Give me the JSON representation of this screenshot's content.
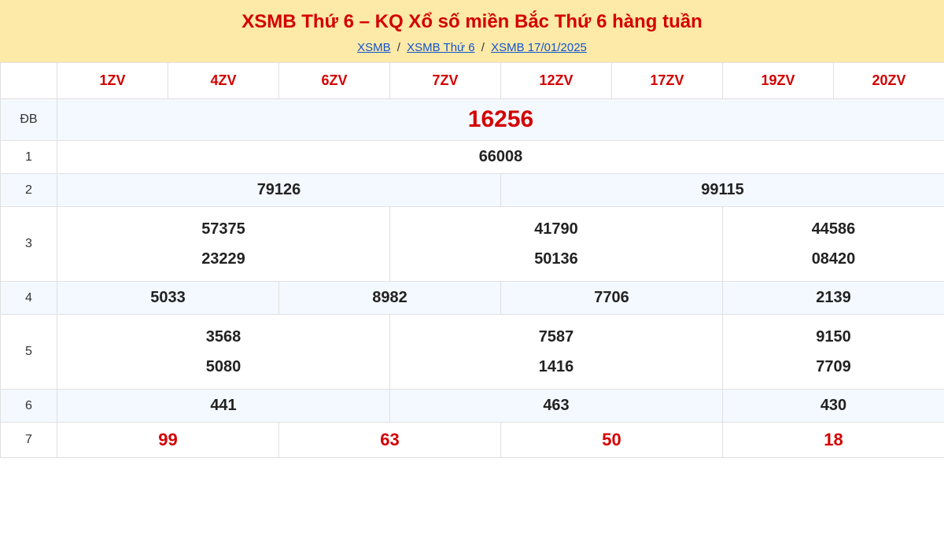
{
  "header": {
    "background_color": "#fde9a8",
    "title": "XSMB Thứ 6 – KQ Xổ số miền Bắc Thứ 6 hàng tuần",
    "title_color": "#d40000",
    "breadcrumb": [
      {
        "label": "XSMB",
        "href": "#"
      },
      {
        "label": "XSMB Thứ 6",
        "href": "#"
      },
      {
        "label": "XSMB 17/01/2025",
        "href": "#"
      }
    ],
    "breadcrumb_sep": "/"
  },
  "table": {
    "header_color": "#d40000",
    "border_color": "#e0e0e0",
    "stripe_color": "#f4f9ff",
    "columns": [
      "1ZV",
      "4ZV",
      "6ZV",
      "7ZV",
      "12ZV",
      "17ZV",
      "19ZV",
      "20ZV"
    ],
    "rows": {
      "db": {
        "label": "ĐB",
        "value": "16256",
        "span": 8,
        "style": "special"
      },
      "r1": {
        "label": "1",
        "values": [
          {
            "text": "66008",
            "span": 8
          }
        ]
      },
      "r2": {
        "label": "2",
        "values": [
          {
            "text": "79126",
            "span": 4
          },
          {
            "text": "99115",
            "span": 4
          }
        ]
      },
      "r3": {
        "label": "3",
        "values": [
          {
            "lines": [
              "57375",
              "23229"
            ],
            "span": 3
          },
          {
            "lines": [
              "41790",
              "50136"
            ],
            "span": 3
          },
          {
            "lines": [
              "44586",
              "08420"
            ],
            "span": 2
          }
        ]
      },
      "r4": {
        "label": "4",
        "values": [
          {
            "text": "5033",
            "span": 2
          },
          {
            "text": "8982",
            "span": 2
          },
          {
            "text": "7706",
            "span": 2
          },
          {
            "text": "2139",
            "span": 2
          }
        ]
      },
      "r5": {
        "label": "5",
        "values": [
          {
            "lines": [
              "3568",
              "5080"
            ],
            "span": 3
          },
          {
            "lines": [
              "7587",
              "1416"
            ],
            "span": 3
          },
          {
            "lines": [
              "9150",
              "7709"
            ],
            "span": 2
          }
        ]
      },
      "r6": {
        "label": "6",
        "values": [
          {
            "text": "441",
            "span": 3
          },
          {
            "text": "463",
            "span": 3
          },
          {
            "text": "430",
            "span": 2
          }
        ]
      },
      "r7": {
        "label": "7",
        "values": [
          {
            "text": "99",
            "span": 2
          },
          {
            "text": "63",
            "span": 2
          },
          {
            "text": "50",
            "span": 2
          },
          {
            "text": "18",
            "span": 2
          }
        ],
        "style": "row7"
      }
    }
  }
}
